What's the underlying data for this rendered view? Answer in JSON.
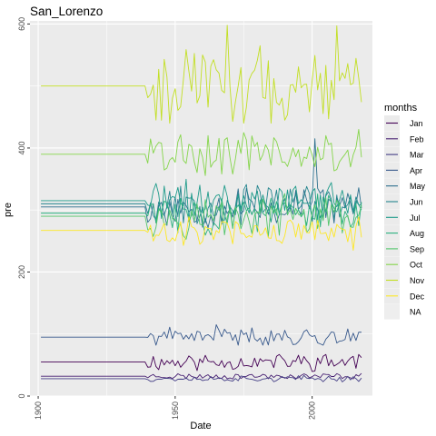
{
  "chart_data": {
    "type": "line",
    "title": "San_Lorenzo",
    "xlabel": "Date",
    "ylabel": "pre",
    "xlim": [
      1897,
      2022
    ],
    "ylim": [
      0,
      605
    ],
    "x_ticks": [
      "1900",
      "1950",
      "2000"
    ],
    "x_tick_values": [
      1900,
      1950,
      2000
    ],
    "y_ticks": [
      "0",
      "200",
      "400",
      "600"
    ],
    "y_tick_values": [
      0,
      200,
      400,
      600
    ],
    "grid": true,
    "legend_title": "months",
    "legend_position": "right",
    "na_label": "NA",
    "na_color": "#eeeeee",
    "series": [
      {
        "name": "Jan",
        "color": "#440154",
        "base": 55,
        "amp": 9,
        "low": 2,
        "high": 67,
        "seed": 11,
        "overrides": [
          [
            2017,
            67
          ],
          [
            2018,
            62
          ]
        ]
      },
      {
        "name": "Feb",
        "color": "#482173",
        "base": 32,
        "amp": 3,
        "low": 20,
        "high": 38,
        "seed": 23,
        "overrides": []
      },
      {
        "name": "Mar",
        "color": "#433E85",
        "base": 28,
        "amp": 3,
        "low": 18,
        "high": 34,
        "seed": 37,
        "overrides": []
      },
      {
        "name": "Apr",
        "color": "#38598C",
        "base": 95,
        "amp": 9,
        "low": 82,
        "high": 116,
        "seed": 41,
        "overrides": [
          [
            1965,
            115
          ],
          [
            1978,
            110
          ],
          [
            1990,
            106
          ]
        ]
      },
      {
        "name": "May",
        "color": "#2D708E",
        "base": 305,
        "amp": 22,
        "low": 262,
        "high": 400,
        "seed": 53,
        "overrides": [
          [
            2001,
            415
          ],
          [
            2002,
            335
          ],
          [
            2011,
            320
          ]
        ]
      },
      {
        "name": "Jun",
        "color": "#25858E",
        "base": 310,
        "amp": 20,
        "low": 270,
        "high": 360,
        "seed": 67,
        "overrides": []
      },
      {
        "name": "Jul",
        "color": "#1E9B8A",
        "base": 315,
        "amp": 20,
        "low": 270,
        "high": 360,
        "seed": 71,
        "overrides": []
      },
      {
        "name": "Aug",
        "color": "#2BB07F",
        "base": 295,
        "amp": 20,
        "low": 250,
        "high": 350,
        "seed": 83,
        "overrides": []
      },
      {
        "name": "Sep",
        "color": "#51C56A",
        "base": 290,
        "amp": 20,
        "low": 245,
        "high": 345,
        "seed": 97,
        "overrides": []
      },
      {
        "name": "Oct",
        "color": "#85D54A",
        "base": 390,
        "amp": 22,
        "low": 340,
        "high": 430,
        "seed": 101,
        "overrides": [
          [
            1951,
            410
          ],
          [
            1962,
            420
          ],
          [
            2017,
            430
          ],
          [
            2018,
            385
          ]
        ]
      },
      {
        "name": "Nov",
        "color": "#C2DF23",
        "base": 500,
        "amp": 35,
        "low": 440,
        "high": 600,
        "seed": 113,
        "overrides": [
          [
            1969,
            598
          ],
          [
            2009,
            597
          ],
          [
            1981,
            565
          ],
          [
            1985,
            440
          ]
        ]
      },
      {
        "name": "Dec",
        "color": "#FDE725",
        "base": 267,
        "amp": 15,
        "low": 230,
        "high": 310,
        "seed": 127,
        "overrides": [
          [
            2015,
            235
          ]
        ]
      }
    ]
  }
}
